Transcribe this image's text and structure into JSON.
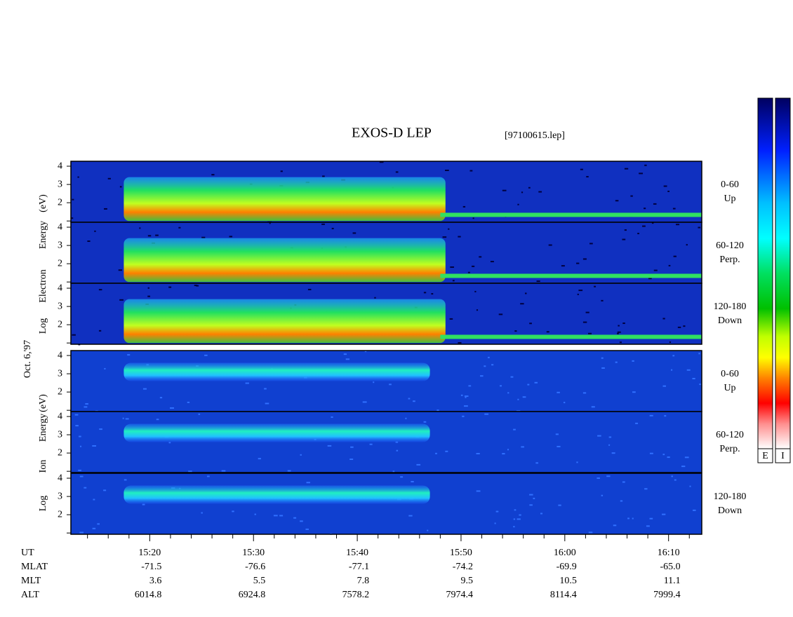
{
  "title": "EXOS-D LEP",
  "file": "[97100615.lep]",
  "electron_axis_label": [
    "Log",
    "Electron",
    "Energy",
    "(eV)"
  ],
  "date": "Oct. 6,'97",
  "ion_axis_label": [
    "Log",
    "Ion",
    "Energy",
    "(eV)"
  ],
  "panels": [
    {
      "species": "electron",
      "angle": [
        "0-60",
        "Up"
      ]
    },
    {
      "species": "electron",
      "angle": [
        "60-120",
        "Perp."
      ]
    },
    {
      "species": "electron",
      "angle": [
        "120-180",
        "Down"
      ]
    },
    {
      "species": "ion",
      "angle": [
        "0-60",
        "Up"
      ]
    },
    {
      "species": "ion",
      "angle": [
        "60-120",
        "Perp."
      ]
    },
    {
      "species": "ion",
      "angle": [
        "120-180",
        "Down"
      ]
    }
  ],
  "yaxis": {
    "lim": [
      0.93,
      4.27
    ],
    "ticks": [
      2,
      3,
      4
    ],
    "minor_ticks": [
      1
    ]
  },
  "xaxis": {
    "lim": [
      12.4,
      73.2
    ],
    "ticks": [
      {
        "value": 20,
        "label": "15:20"
      },
      {
        "value": 30,
        "label": "15:30"
      },
      {
        "value": 40,
        "label": "15:40"
      },
      {
        "value": 50,
        "label": "15:50"
      },
      {
        "value": 60,
        "label": "16:00"
      },
      {
        "value": 70,
        "label": "16:10"
      }
    ],
    "minor_ticks": [
      14,
      16,
      18,
      22,
      24,
      26,
      28,
      32,
      34,
      36,
      38,
      42,
      44,
      46,
      48,
      52,
      54,
      56,
      58,
      62,
      64,
      66,
      68,
      72
    ]
  },
  "table": {
    "first_label": "UT",
    "rows": [
      {
        "label": "MLAT",
        "values": [
          "-71.5",
          "-76.6",
          "-77.1",
          "-74.2",
          "-69.9",
          "-65.0"
        ]
      },
      {
        "label": "MLT",
        "values": [
          "3.6",
          "5.5",
          "7.8",
          "9.5",
          "10.5",
          "11.1"
        ]
      },
      {
        "label": "ALT",
        "values": [
          "6014.8",
          "6924.8",
          "7578.2",
          "7974.4",
          "8114.4",
          "7999.4"
        ]
      }
    ]
  },
  "colorbars": [
    "E",
    "I"
  ]
}
